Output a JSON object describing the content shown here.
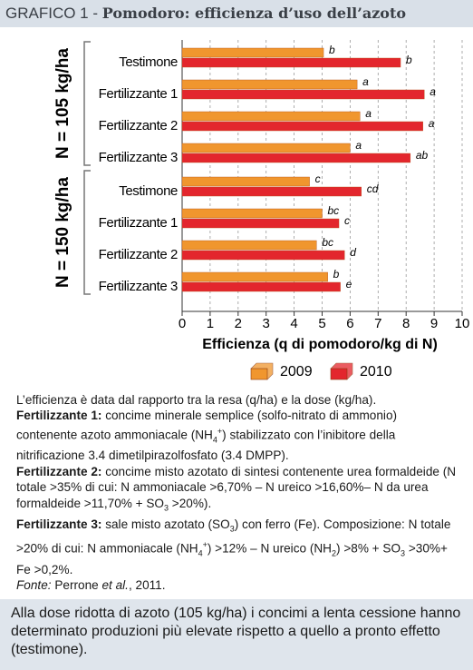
{
  "title": {
    "label": "GRAFICO 1 - ",
    "subject": "Pomodoro: efficienza d’uso dell’azoto"
  },
  "chart_data": {
    "type": "bar",
    "orientation": "horizontal",
    "groups": [
      {
        "label": "N = 105 kg/ha",
        "categories": [
          "Testimone",
          "Fertilizzante 1",
          "Fertilizzante 2",
          "Fertilizzante 3"
        ]
      },
      {
        "label": "N = 150 kg/ha",
        "categories": [
          "Testimone",
          "Fertilizzante 1",
          "Fertilizzante 2",
          "Fertilizzante 3"
        ]
      }
    ],
    "series": [
      {
        "name": "2009",
        "color": "#f0962e",
        "values": [
          5.05,
          6.25,
          6.35,
          6.0,
          4.55,
          5.0,
          4.8,
          5.2
        ],
        "letters": [
          "b",
          "a",
          "a",
          "a",
          "c",
          "bc",
          "bc",
          "b"
        ]
      },
      {
        "name": "2010",
        "color": "#e3262d",
        "values": [
          7.8,
          8.65,
          8.6,
          8.15,
          6.4,
          5.6,
          5.8,
          5.65
        ],
        "letters": [
          "b",
          "a",
          "a",
          "ab",
          "cd",
          "c",
          "d",
          "e"
        ]
      }
    ],
    "xlabel": "Efficienza (q di pomodoro/kg di N)",
    "xlim": [
      0,
      10
    ],
    "xticks": [
      0,
      1,
      2,
      3,
      4,
      5,
      6,
      7,
      8,
      9,
      10
    ],
    "grid": true
  },
  "notes": [
    [
      {
        "text": "L’efficienza è data dal rapporto tra la resa (q/ha) e la dose (kg/ha)."
      }
    ],
    [
      {
        "text": "Fertilizzante 1:",
        "style": "bold"
      },
      {
        "text": " concime minerale semplice (solfo-nitrato di ammonio) contenente azoto ammoniacale (NH"
      },
      {
        "text": "4",
        "style": "sub"
      },
      {
        "text": "+",
        "style": "sup"
      },
      {
        "text": ") stabilizzato con l’inibitore della nitrificazione 3.4 dimetilpirazolfosfato (3.4 DMPP)."
      }
    ],
    [
      {
        "text": "Fertilizzante 2:",
        "style": "bold"
      },
      {
        "text": " concime misto azotato di sintesi contenente urea formaldeide (N totale >35% di cui: N ammoniacale >6,70% – N ureico >16,60%– N da urea formaldeide >11,70% + SO"
      },
      {
        "text": "3",
        "style": "sub"
      },
      {
        "text": " >20%)."
      }
    ],
    [
      {
        "text": "Fertilizzante 3:",
        "style": "bold"
      },
      {
        "text": " sale misto azotato (SO"
      },
      {
        "text": "3",
        "style": "sub"
      },
      {
        "text": ") con ferro (Fe). Composizione: N totale >20% di cui: N ammoniacale (NH"
      },
      {
        "text": "4",
        "style": "sub"
      },
      {
        "text": "+",
        "style": "sup"
      },
      {
        "text": ") >12% – N ureico (NH"
      },
      {
        "text": "2",
        "style": "sub"
      },
      {
        "text": ") >8% + SO"
      },
      {
        "text": "3",
        "style": "sub"
      },
      {
        "text": " >30%+ Fe >0,2%."
      }
    ],
    [
      {
        "text": "Fonte:",
        "style": "italic"
      },
      {
        "text": " Perrone "
      },
      {
        "text": "et al.",
        "style": "italic"
      },
      {
        "text": ", 2011."
      }
    ]
  ],
  "summary": "Alla dose ridotta di azoto (105 kg/ha) i concimi a lenta cessione hanno determinato produzioni più elevate rispetto a quello a pronto effetto (testimone)."
}
